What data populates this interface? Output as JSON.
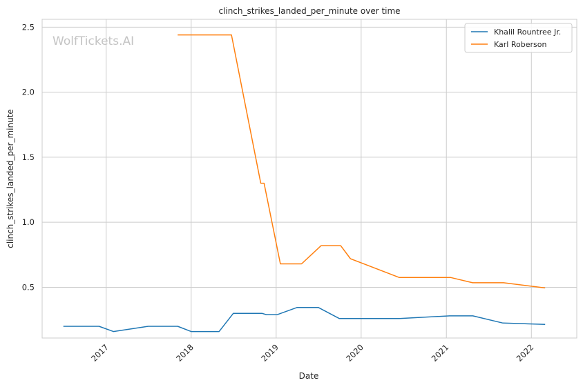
{
  "chart_data": {
    "type": "line",
    "title": "clinch_strikes_landed_per_minute over time",
    "xlabel": "Date",
    "ylabel": "clinch_strikes_landed_per_minute",
    "watermark": "WolfTickets.AI",
    "xlim": [
      "2016-04-01",
      "2022-07-15"
    ],
    "ylim": [
      0.11,
      2.56
    ],
    "x_ticks": [
      "2017",
      "2018",
      "2019",
      "2020",
      "2021",
      "2022"
    ],
    "y_ticks": [
      0.5,
      1.0,
      1.5,
      2.0,
      2.5
    ],
    "y_tick_labels": [
      "0.5",
      "1.0",
      "1.5",
      "2.0",
      "2.5"
    ],
    "grid": true,
    "legend_position": "top-right",
    "series": [
      {
        "name": "Khalil Rountree Jr.",
        "color": "#1f77b4",
        "points": [
          [
            "2016-07-01",
            0.2
          ],
          [
            "2016-12-01",
            0.2
          ],
          [
            "2017-02-01",
            0.16
          ],
          [
            "2017-07-01",
            0.2
          ],
          [
            "2017-11-04",
            0.2
          ],
          [
            "2018-01-01",
            0.16
          ],
          [
            "2018-05-01",
            0.16
          ],
          [
            "2018-07-01",
            0.3
          ],
          [
            "2018-11-01",
            0.3
          ],
          [
            "2018-11-20",
            0.29
          ],
          [
            "2019-01-06",
            0.29
          ],
          [
            "2019-04-01",
            0.345
          ],
          [
            "2019-07-01",
            0.345
          ],
          [
            "2019-09-29",
            0.26
          ],
          [
            "2020-06-13",
            0.26
          ],
          [
            "2021-01-15",
            0.28
          ],
          [
            "2021-04-25",
            0.28
          ],
          [
            "2021-09-01",
            0.225
          ],
          [
            "2022-03-01",
            0.215
          ]
        ]
      },
      {
        "name": "Karl Roberson",
        "color": "#ff7f0e",
        "points": [
          [
            "2017-11-04",
            2.44
          ],
          [
            "2018-06-23",
            2.44
          ],
          [
            "2018-10-27",
            1.3
          ],
          [
            "2018-11-10",
            1.3
          ],
          [
            "2019-01-19",
            0.68
          ],
          [
            "2019-04-20",
            0.68
          ],
          [
            "2019-07-13",
            0.82
          ],
          [
            "2019-10-05",
            0.82
          ],
          [
            "2019-11-16",
            0.72
          ],
          [
            "2020-06-13",
            0.575
          ],
          [
            "2021-01-20",
            0.575
          ],
          [
            "2021-04-24",
            0.535
          ],
          [
            "2021-09-04",
            0.535
          ],
          [
            "2022-03-01",
            0.495
          ]
        ]
      }
    ]
  }
}
